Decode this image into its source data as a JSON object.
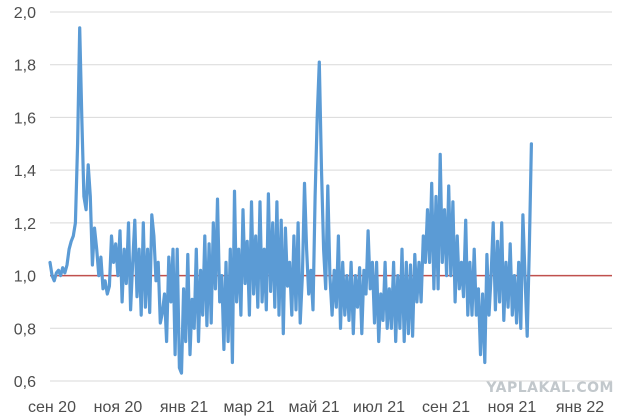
{
  "chart_data": {
    "type": "line",
    "title": "",
    "xlabel": "",
    "ylabel": "",
    "ylim": [
      0.6,
      2.0
    ],
    "yticks": [
      "0,6",
      "0,8",
      "1,0",
      "1,2",
      "1,4",
      "1,6",
      "1,8",
      "2,0"
    ],
    "ytick_values": [
      0.6,
      0.8,
      1.0,
      1.2,
      1.4,
      1.6,
      1.8,
      2.0
    ],
    "xticks": [
      "сен 20",
      "ноя 20",
      "янв 21",
      "мар 21",
      "май 21",
      "июл 21",
      "сен 21",
      "ноя 21",
      "янв 22"
    ],
    "xlim": [
      0,
      530
    ],
    "grid": true,
    "reference_line": {
      "y": 1.0,
      "color": "#c0504d"
    },
    "series": [
      {
        "color": "#5b9bd5",
        "points": [
          [
            0,
            1.05
          ],
          [
            2,
            1.0
          ],
          [
            4,
            0.98
          ],
          [
            6,
            1.01
          ],
          [
            8,
            1.02
          ],
          [
            10,
            1.0
          ],
          [
            12,
            1.03
          ],
          [
            14,
            1.01
          ],
          [
            16,
            1.04
          ],
          [
            18,
            1.1
          ],
          [
            20,
            1.13
          ],
          [
            22,
            1.15
          ],
          [
            24,
            1.2
          ],
          [
            26,
            1.5
          ],
          [
            28,
            1.94
          ],
          [
            30,
            1.6
          ],
          [
            32,
            1.3
          ],
          [
            34,
            1.25
          ],
          [
            36,
            1.42
          ],
          [
            38,
            1.3
          ],
          [
            40,
            1.04
          ],
          [
            42,
            1.18
          ],
          [
            44,
            1.1
          ],
          [
            46,
            1.0
          ],
          [
            48,
            1.07
          ],
          [
            50,
            0.95
          ],
          [
            52,
            0.98
          ],
          [
            54,
            0.93
          ],
          [
            56,
            0.96
          ],
          [
            58,
            1.15
          ],
          [
            60,
            1.05
          ],
          [
            62,
            1.12
          ],
          [
            64,
            1.0
          ],
          [
            66,
            1.17
          ],
          [
            68,
            0.9
          ],
          [
            70,
            1.1
          ],
          [
            72,
            0.97
          ],
          [
            74,
            1.2
          ],
          [
            76,
            0.87
          ],
          [
            78,
            1.05
          ],
          [
            80,
            1.21
          ],
          [
            82,
            0.92
          ],
          [
            84,
            1.1
          ],
          [
            86,
            0.85
          ],
          [
            88,
            1.2
          ],
          [
            90,
            0.88
          ],
          [
            92,
            1.1
          ],
          [
            94,
            0.86
          ],
          [
            96,
            1.23
          ],
          [
            98,
            1.15
          ],
          [
            100,
            0.98
          ],
          [
            102,
            1.05
          ],
          [
            104,
            0.82
          ],
          [
            106,
            0.86
          ],
          [
            108,
            0.93
          ],
          [
            110,
            0.75
          ],
          [
            112,
            1.07
          ],
          [
            114,
            0.9
          ],
          [
            116,
            1.1
          ],
          [
            118,
            0.7
          ],
          [
            120,
            1.1
          ],
          [
            122,
            0.65
          ],
          [
            124,
            0.63
          ],
          [
            126,
            0.95
          ],
          [
            128,
            0.75
          ],
          [
            130,
            1.08
          ],
          [
            132,
            0.7
          ],
          [
            134,
            0.91
          ],
          [
            136,
            0.8
          ],
          [
            138,
            1.1
          ],
          [
            140,
            0.75
          ],
          [
            142,
            1.02
          ],
          [
            144,
            0.85
          ],
          [
            146,
            1.15
          ],
          [
            148,
            0.81
          ],
          [
            150,
            1.12
          ],
          [
            152,
            0.82
          ],
          [
            154,
            1.2
          ],
          [
            156,
            0.95
          ],
          [
            158,
            1.29
          ],
          [
            160,
            0.9
          ],
          [
            162,
            1.0
          ],
          [
            164,
            0.72
          ],
          [
            166,
            1.05
          ],
          [
            168,
            0.75
          ],
          [
            170,
            1.1
          ],
          [
            172,
            0.67
          ],
          [
            174,
            1.32
          ],
          [
            176,
            0.9
          ],
          [
            178,
            1.1
          ],
          [
            180,
            0.85
          ],
          [
            182,
            1.25
          ],
          [
            184,
            0.97
          ],
          [
            186,
            1.13
          ],
          [
            188,
            0.85
          ],
          [
            190,
            1.28
          ],
          [
            192,
            0.93
          ],
          [
            194,
            1.15
          ],
          [
            196,
            0.88
          ],
          [
            198,
            1.28
          ],
          [
            200,
            0.9
          ],
          [
            202,
            1.1
          ],
          [
            204,
            0.87
          ],
          [
            206,
            1.31
          ],
          [
            208,
            0.94
          ],
          [
            210,
            1.2
          ],
          [
            212,
            0.88
          ],
          [
            214,
            1.28
          ],
          [
            216,
            0.85
          ],
          [
            218,
            1.21
          ],
          [
            220,
            0.78
          ],
          [
            222,
            1.18
          ],
          [
            224,
            0.96
          ],
          [
            226,
            1.05
          ],
          [
            228,
            0.85
          ],
          [
            230,
            1.15
          ],
          [
            232,
            0.87
          ],
          [
            234,
            1.2
          ],
          [
            236,
            0.82
          ],
          [
            238,
            1.0
          ],
          [
            240,
            1.35
          ],
          [
            242,
            1.1
          ],
          [
            244,
            0.93
          ],
          [
            246,
            1.02
          ],
          [
            248,
            0.87
          ],
          [
            250,
            1.3
          ],
          [
            252,
            1.6
          ],
          [
            254,
            1.81
          ],
          [
            256,
            1.4
          ],
          [
            258,
            1.1
          ],
          [
            260,
            0.95
          ],
          [
            262,
            1.34
          ],
          [
            264,
            1.0
          ],
          [
            266,
            0.85
          ],
          [
            268,
            1.02
          ],
          [
            270,
            0.88
          ],
          [
            272,
            1.15
          ],
          [
            274,
            0.8
          ],
          [
            276,
            1.05
          ],
          [
            278,
            0.85
          ],
          [
            280,
            1.0
          ],
          [
            282,
            0.83
          ],
          [
            284,
            1.05
          ],
          [
            286,
            0.78
          ],
          [
            288,
            1.0
          ],
          [
            290,
            0.88
          ],
          [
            292,
            1.03
          ],
          [
            294,
            0.78
          ],
          [
            296,
            1.02
          ],
          [
            298,
            0.93
          ],
          [
            300,
            1.17
          ],
          [
            302,
            0.95
          ],
          [
            304,
            1.05
          ],
          [
            306,
            0.82
          ],
          [
            308,
            1.05
          ],
          [
            310,
            0.75
          ],
          [
            312,
            0.93
          ],
          [
            314,
            0.83
          ],
          [
            316,
            1.05
          ],
          [
            318,
            0.8
          ],
          [
            320,
            0.95
          ],
          [
            322,
            0.8
          ],
          [
            324,
            1.05
          ],
          [
            326,
            0.75
          ],
          [
            328,
            1.0
          ],
          [
            330,
            0.8
          ],
          [
            332,
            1.1
          ],
          [
            334,
            0.75
          ],
          [
            336,
            1.05
          ],
          [
            338,
            0.78
          ],
          [
            340,
            1.04
          ],
          [
            342,
            0.77
          ],
          [
            344,
            1.08
          ],
          [
            346,
            0.9
          ],
          [
            348,
            1.05
          ],
          [
            350,
            0.9
          ],
          [
            352,
            1.15
          ],
          [
            354,
            1.05
          ],
          [
            356,
            1.25
          ],
          [
            358,
            1.05
          ],
          [
            360,
            1.35
          ],
          [
            362,
            0.95
          ],
          [
            364,
            1.3
          ],
          [
            366,
            0.95
          ],
          [
            368,
            1.46
          ],
          [
            370,
            1.05
          ],
          [
            372,
            1.25
          ],
          [
            374,
            1.0
          ],
          [
            376,
            1.34
          ],
          [
            378,
            1.0
          ],
          [
            380,
            1.28
          ],
          [
            382,
            0.9
          ],
          [
            384,
            1.15
          ],
          [
            386,
            0.95
          ],
          [
            388,
            1.05
          ],
          [
            390,
            0.92
          ],
          [
            392,
            1.21
          ],
          [
            394,
            0.85
          ],
          [
            396,
            1.05
          ],
          [
            398,
            0.85
          ],
          [
            400,
            1.1
          ],
          [
            402,
            0.85
          ],
          [
            404,
            0.95
          ],
          [
            406,
            0.7
          ],
          [
            408,
            0.93
          ],
          [
            410,
            0.67
          ],
          [
            412,
            1.08
          ],
          [
            414,
            0.85
          ],
          [
            416,
            1.0
          ],
          [
            418,
            1.2
          ],
          [
            420,
            0.87
          ],
          [
            422,
            1.13
          ],
          [
            424,
            0.9
          ],
          [
            426,
            1.2
          ],
          [
            428,
            0.83
          ],
          [
            430,
            1.05
          ],
          [
            432,
            0.88
          ],
          [
            434,
            1.12
          ],
          [
            436,
            0.85
          ],
          [
            438,
            1.0
          ],
          [
            440,
            0.82
          ],
          [
            442,
            1.05
          ],
          [
            444,
            0.8
          ],
          [
            446,
            1.23
          ],
          [
            448,
            1.0
          ],
          [
            450,
            0.77
          ],
          [
            452,
            1.1
          ],
          [
            454,
            1.5
          ]
        ]
      }
    ]
  },
  "watermark": "YAPLAKAL.COM"
}
